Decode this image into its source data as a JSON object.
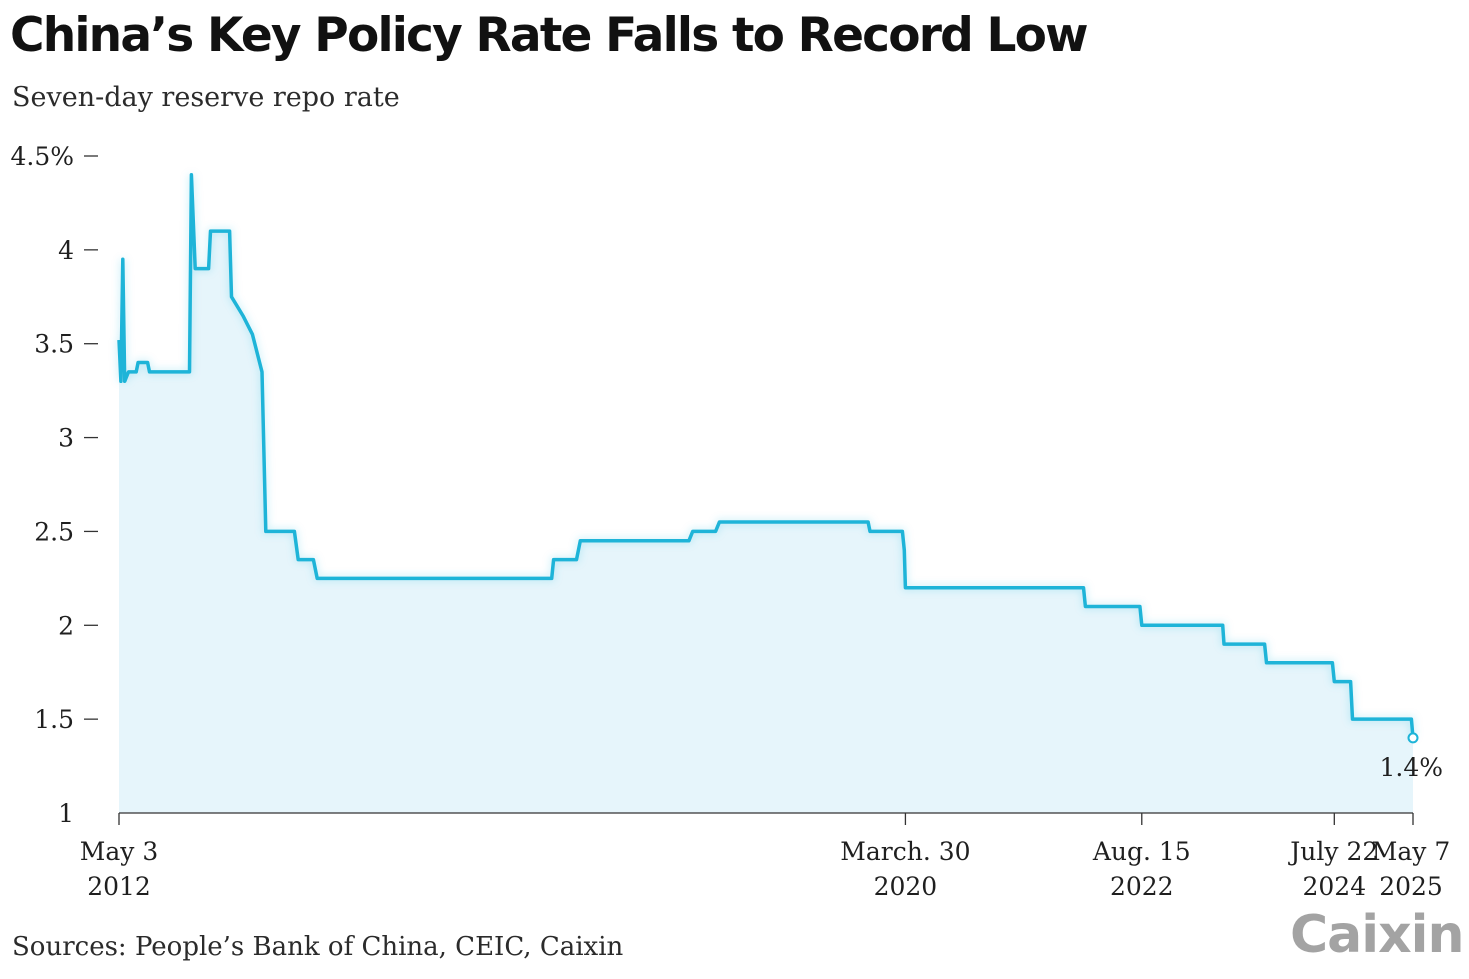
{
  "header": {
    "title": "China’s Key Policy Rate Falls to Record Low",
    "subtitle": "Seven-day reserve repo rate"
  },
  "footer": {
    "source": "Sources: People’s Bank of China, CEIC, Caixin",
    "logo": "Caixin"
  },
  "colors": {
    "line": "#1eb4d8",
    "area": "#e6f5fb",
    "axis": "#333333"
  },
  "chart_data": {
    "type": "area",
    "title": "China’s Key Policy Rate Falls to Record Low",
    "subtitle": "Seven-day reserve repo rate",
    "xlabel": "",
    "ylabel": "",
    "ylim": [
      1,
      4.5
    ],
    "xlim": [
      "2012-05-03",
      "2025-05-07"
    ],
    "grid": false,
    "y_ticks": [
      {
        "value": 4.5,
        "label": "4.5%"
      },
      {
        "value": 4,
        "label": "4"
      },
      {
        "value": 3.5,
        "label": "3.5"
      },
      {
        "value": 3,
        "label": "3"
      },
      {
        "value": 2.5,
        "label": "2.5"
      },
      {
        "value": 2,
        "label": "2"
      },
      {
        "value": 1.5,
        "label": "1.5"
      },
      {
        "value": 1,
        "label": "1"
      }
    ],
    "x_ticks": [
      {
        "date": "2012-05-03",
        "label1": "May 3",
        "label2": "2012"
      },
      {
        "date": "2020-03-30",
        "label1": "March. 30",
        "label2": "2020"
      },
      {
        "date": "2022-08-15",
        "label1": "Aug. 15",
        "label2": "2022"
      },
      {
        "date": "2024-07-22",
        "label1": "July 22",
        "label2": "2024"
      },
      {
        "date": "2025-05-07",
        "label1": "May 7",
        "label2": "2025"
      }
    ],
    "series": [
      {
        "points": [
          [
            "2012-05-03",
            3.52
          ],
          [
            "2012-05-10",
            3.3
          ],
          [
            "2012-05-17",
            3.95
          ],
          [
            "2012-05-24",
            3.3
          ],
          [
            "2012-06-07",
            3.35
          ],
          [
            "2012-07-05",
            3.35
          ],
          [
            "2012-07-12",
            3.4
          ],
          [
            "2012-08-16",
            3.4
          ],
          [
            "2012-08-23",
            3.35
          ],
          [
            "2013-01-10",
            3.35
          ],
          [
            "2013-01-17",
            3.35
          ],
          [
            "2013-01-24",
            4.4
          ],
          [
            "2013-02-07",
            3.9
          ],
          [
            "2013-03-28",
            3.9
          ],
          [
            "2013-04-04",
            4.1
          ],
          [
            "2013-06-13",
            4.1
          ],
          [
            "2013-06-20",
            3.75
          ],
          [
            "2013-08-01",
            3.65
          ],
          [
            "2013-09-05",
            3.55
          ],
          [
            "2013-10-10",
            3.35
          ],
          [
            "2013-10-24",
            2.5
          ],
          [
            "2014-02-06",
            2.5
          ],
          [
            "2014-02-20",
            2.35
          ],
          [
            "2014-04-17",
            2.35
          ],
          [
            "2014-05-01",
            2.25
          ],
          [
            "2016-09-08",
            2.25
          ],
          [
            "2016-09-15",
            2.35
          ],
          [
            "2016-12-08",
            2.35
          ],
          [
            "2016-12-22",
            2.45
          ],
          [
            "2018-01-25",
            2.45
          ],
          [
            "2018-02-08",
            2.5
          ],
          [
            "2018-05-03",
            2.5
          ],
          [
            "2018-05-17",
            2.55
          ],
          [
            "2019-11-14",
            2.55
          ],
          [
            "2019-11-21",
            2.5
          ],
          [
            "2020-03-19",
            2.5
          ],
          [
            "2020-03-26",
            2.4
          ],
          [
            "2020-03-30",
            2.2
          ],
          [
            "2022-01-13",
            2.2
          ],
          [
            "2022-01-20",
            2.1
          ],
          [
            "2022-08-08",
            2.1
          ],
          [
            "2022-08-15",
            2.0
          ],
          [
            "2023-06-08",
            2.0
          ],
          [
            "2023-06-13",
            1.9
          ],
          [
            "2023-11-09",
            1.9
          ],
          [
            "2023-11-16",
            1.8
          ],
          [
            "2024-07-15",
            1.8
          ],
          [
            "2024-07-22",
            1.7
          ],
          [
            "2024-09-20",
            1.7
          ],
          [
            "2024-09-27",
            1.5
          ],
          [
            "2025-05-01",
            1.5
          ],
          [
            "2025-05-07",
            1.4
          ]
        ]
      }
    ],
    "annotations": [
      {
        "date": "2025-05-07",
        "value": 1.4,
        "text": "1.4%"
      }
    ]
  }
}
